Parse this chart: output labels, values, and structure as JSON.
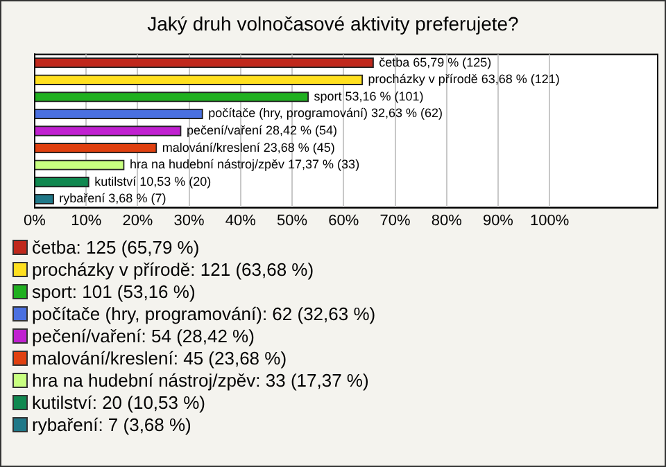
{
  "chart_data": {
    "type": "bar",
    "title": "Jaký druh volnočasové aktivity preferujete?",
    "orientation": "horizontal",
    "stacked": true,
    "categories": [
      null,
      null,
      null,
      null,
      null,
      null,
      null,
      null,
      null
    ],
    "series": [
      {
        "name": "četba: 125 (65,79 %)",
        "color": "#c0281c",
        "values": [
          65.79,
          null,
          null,
          null,
          null,
          null,
          null,
          null,
          null
        ],
        "value_labels": [
          "četba 65,79 % (125)",
          null,
          null,
          null,
          null,
          null,
          null,
          null,
          null
        ]
      },
      {
        "name": "procházky v přírodě: 121 (63,68 %)",
        "color": "#ffe020",
        "values": [
          null,
          63.68,
          null,
          null,
          null,
          null,
          null,
          null,
          null
        ],
        "value_labels": [
          null,
          "procházky v přírodě 63,68 % (121)",
          null,
          null,
          null,
          null,
          null,
          null,
          null
        ]
      },
      {
        "name": "sport: 101 (53,16 %)",
        "color": "#20b020",
        "values": [
          null,
          null,
          53.16,
          null,
          null,
          null,
          null,
          null,
          null
        ],
        "value_labels": [
          null,
          null,
          "sport 53,16 % (101)",
          null,
          null,
          null,
          null,
          null,
          null
        ]
      },
      {
        "name": "počítače (hry, programování): 62 (32,63 %)",
        "color": "#4a70e0",
        "values": [
          null,
          null,
          null,
          32.63,
          null,
          null,
          null,
          null,
          null
        ],
        "value_labels": [
          null,
          null,
          null,
          "počítače (hry, programování) 32,63 % (62)",
          null,
          null,
          null,
          null,
          null
        ]
      },
      {
        "name": "pečení/vaření: 54 (28,42 %)",
        "color": "#c020d0",
        "values": [
          null,
          null,
          null,
          null,
          28.42,
          null,
          null,
          null,
          null
        ],
        "value_labels": [
          null,
          null,
          null,
          null,
          "pečení/vaření 28,42 % (54)",
          null,
          null,
          null,
          null
        ]
      },
      {
        "name": "malování/kreslení: 45 (23,68 %)",
        "color": "#e04010",
        "values": [
          null,
          null,
          null,
          null,
          null,
          23.68,
          null,
          null,
          null
        ],
        "value_labels": [
          null,
          null,
          null,
          null,
          null,
          "malování/kreslení 23,68 % (45)",
          null,
          null,
          null
        ]
      },
      {
        "name": "hra na hudební nástroj/zpěv: 33 (17,37 %)",
        "color": "#c8ff80",
        "values": [
          null,
          null,
          null,
          null,
          null,
          null,
          17.37,
          null,
          null
        ],
        "value_labels": [
          null,
          null,
          null,
          null,
          null,
          null,
          "hra na hudební nástroj/zpěv 17,37 % (33)",
          null,
          null
        ]
      },
      {
        "name": "kutilství: 20 (10,53 %)",
        "color": "#108850",
        "values": [
          null,
          null,
          null,
          null,
          null,
          null,
          null,
          10.53,
          null
        ],
        "value_labels": [
          null,
          null,
          null,
          null,
          null,
          null,
          null,
          "kutilství 10,53 % (20)",
          null
        ]
      },
      {
        "name": "rybaření: 7 (3,68 %)",
        "color": "#207888",
        "values": [
          null,
          null,
          null,
          null,
          null,
          null,
          null,
          null,
          3.68
        ],
        "value_labels": [
          null,
          null,
          null,
          null,
          null,
          null,
          null,
          null,
          "rybaření 3,68 % (7)"
        ]
      }
    ],
    "xlim": [
      0,
      121
    ],
    "xticks": [
      {
        "value": 0,
        "label": "0%"
      },
      {
        "value": 10,
        "label": "10%"
      },
      {
        "value": 20,
        "label": "20%"
      },
      {
        "value": 30,
        "label": "30%"
      },
      {
        "value": 40,
        "label": "40%"
      },
      {
        "value": 50,
        "label": "50%"
      },
      {
        "value": 60,
        "label": "60%"
      },
      {
        "value": 70,
        "label": "70%"
      },
      {
        "value": 80,
        "label": "80%"
      },
      {
        "value": 90,
        "label": "90%"
      },
      {
        "value": 100,
        "label": "100%"
      }
    ],
    "grid": "x",
    "legend": "bottom"
  }
}
